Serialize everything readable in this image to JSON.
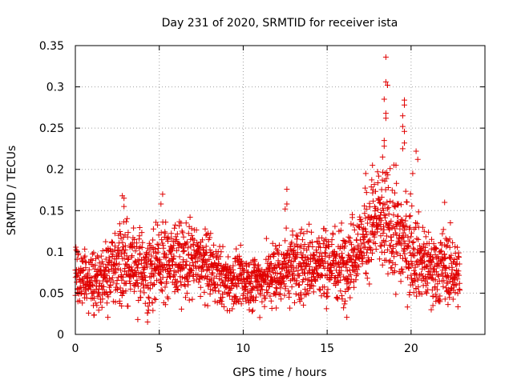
{
  "chart_data": {
    "type": "scatter",
    "title": "Day 231 of 2020, SRMTID for receiver ista",
    "xlabel": "GPS time / hours",
    "ylabel": "SRMTID / TECUs",
    "xlim": [
      0,
      24.4
    ],
    "ylim": [
      0,
      0.35
    ],
    "xticks": [
      0,
      5,
      10,
      15,
      20
    ],
    "xtick_labels": [
      "0",
      "5",
      "10",
      "15",
      "20"
    ],
    "yticks": [
      0,
      0.05,
      0.1,
      0.15,
      0.2,
      0.25,
      0.3,
      0.35
    ],
    "ytick_labels": [
      "0",
      "0.05",
      "0.1",
      "0.15",
      "0.2",
      "0.25",
      "0.3",
      "0.35"
    ],
    "grid": true,
    "marker": "+",
    "color": "#e00000",
    "x_data_range": [
      0,
      22.9
    ],
    "series_profile": [
      {
        "x": 0.0,
        "y": 0.075,
        "spread": 0.02
      },
      {
        "x": 1.0,
        "y": 0.06,
        "spread": 0.018
      },
      {
        "x": 2.0,
        "y": 0.08,
        "spread": 0.025
      },
      {
        "x": 3.0,
        "y": 0.085,
        "spread": 0.03
      },
      {
        "x": 4.0,
        "y": 0.075,
        "spread": 0.025
      },
      {
        "x": 5.0,
        "y": 0.085,
        "spread": 0.025
      },
      {
        "x": 6.0,
        "y": 0.09,
        "spread": 0.025
      },
      {
        "x": 7.0,
        "y": 0.09,
        "spread": 0.025
      },
      {
        "x": 8.0,
        "y": 0.08,
        "spread": 0.022
      },
      {
        "x": 9.0,
        "y": 0.065,
        "spread": 0.018
      },
      {
        "x": 10.0,
        "y": 0.065,
        "spread": 0.018
      },
      {
        "x": 11.0,
        "y": 0.065,
        "spread": 0.018
      },
      {
        "x": 12.0,
        "y": 0.075,
        "spread": 0.022
      },
      {
        "x": 13.0,
        "y": 0.085,
        "spread": 0.025
      },
      {
        "x": 14.0,
        "y": 0.085,
        "spread": 0.025
      },
      {
        "x": 15.0,
        "y": 0.085,
        "spread": 0.025
      },
      {
        "x": 16.0,
        "y": 0.085,
        "spread": 0.025
      },
      {
        "x": 17.0,
        "y": 0.11,
        "spread": 0.025
      },
      {
        "x": 18.0,
        "y": 0.14,
        "spread": 0.035
      },
      {
        "x": 19.0,
        "y": 0.125,
        "spread": 0.035
      },
      {
        "x": 20.0,
        "y": 0.105,
        "spread": 0.03
      },
      {
        "x": 21.0,
        "y": 0.08,
        "spread": 0.022
      },
      {
        "x": 22.0,
        "y": 0.08,
        "spread": 0.025
      },
      {
        "x": 22.9,
        "y": 0.075,
        "spread": 0.02
      }
    ],
    "outliers": [
      {
        "x": 2.8,
        "y": 0.168
      },
      {
        "x": 2.9,
        "y": 0.165
      },
      {
        "x": 2.9,
        "y": 0.155
      },
      {
        "x": 5.2,
        "y": 0.17
      },
      {
        "x": 5.1,
        "y": 0.158
      },
      {
        "x": 4.3,
        "y": 0.015
      },
      {
        "x": 12.6,
        "y": 0.176
      },
      {
        "x": 12.6,
        "y": 0.158
      },
      {
        "x": 12.5,
        "y": 0.152
      },
      {
        "x": 17.3,
        "y": 0.195
      },
      {
        "x": 17.7,
        "y": 0.205
      },
      {
        "x": 18.5,
        "y": 0.336
      },
      {
        "x": 18.5,
        "y": 0.306
      },
      {
        "x": 18.6,
        "y": 0.302
      },
      {
        "x": 18.4,
        "y": 0.285
      },
      {
        "x": 18.5,
        "y": 0.268
      },
      {
        "x": 18.5,
        "y": 0.262
      },
      {
        "x": 18.4,
        "y": 0.235
      },
      {
        "x": 18.4,
        "y": 0.228
      },
      {
        "x": 18.3,
        "y": 0.215
      },
      {
        "x": 19.6,
        "y": 0.284
      },
      {
        "x": 19.6,
        "y": 0.278
      },
      {
        "x": 19.5,
        "y": 0.265
      },
      {
        "x": 19.5,
        "y": 0.252
      },
      {
        "x": 19.6,
        "y": 0.246
      },
      {
        "x": 19.6,
        "y": 0.232
      },
      {
        "x": 19.5,
        "y": 0.225
      },
      {
        "x": 20.3,
        "y": 0.222
      },
      {
        "x": 20.4,
        "y": 0.212
      },
      {
        "x": 20.1,
        "y": 0.195
      },
      {
        "x": 19.1,
        "y": 0.205
      },
      {
        "x": 22.0,
        "y": 0.16
      },
      {
        "x": 21.2,
        "y": 0.03
      },
      {
        "x": 21.3,
        "y": 0.035
      },
      {
        "x": 19.9,
        "y": 0.048
      },
      {
        "x": 18.9,
        "y": 0.075
      }
    ]
  }
}
